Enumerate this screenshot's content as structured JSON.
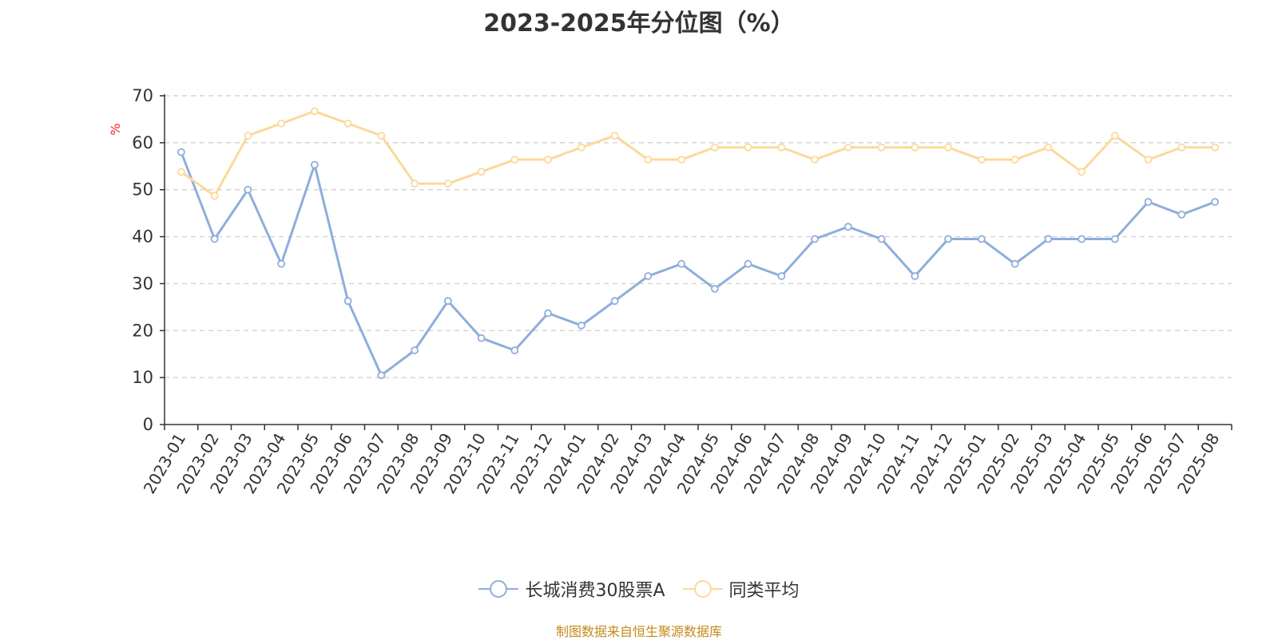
{
  "chart_data": {
    "type": "line",
    "title": "2023-2025年分位图（%）",
    "ylabel": "%",
    "ylim": [
      0,
      70
    ],
    "yticks": [
      0,
      10,
      20,
      30,
      40,
      50,
      60,
      70
    ],
    "grid": true,
    "legend_position": "bottom",
    "x": [
      "2023-01",
      "2023-02",
      "2023-03",
      "2023-04",
      "2023-05",
      "2023-06",
      "2023-07",
      "2023-08",
      "2023-09",
      "2023-10",
      "2023-11",
      "2023-12",
      "2024-01",
      "2024-02",
      "2024-03",
      "2024-04",
      "2024-05",
      "2024-06",
      "2024-07",
      "2024-08",
      "2024-09",
      "2024-10",
      "2024-11",
      "2024-12",
      "2025-01",
      "2025-02",
      "2025-03",
      "2025-04",
      "2025-05",
      "2025-06",
      "2025-07",
      "2025-08"
    ],
    "series": [
      {
        "name": "长城消费30股票A",
        "color": "#8eaedb",
        "values": [
          58.0,
          39.5,
          50.0,
          34.2,
          55.3,
          26.3,
          10.5,
          15.8,
          26.3,
          18.4,
          15.8,
          23.7,
          21.1,
          26.3,
          31.6,
          34.2,
          28.9,
          34.2,
          31.6,
          39.5,
          42.1,
          39.5,
          31.6,
          39.5,
          39.5,
          34.2,
          39.5,
          39.5,
          39.5,
          47.4,
          44.7,
          47.4
        ]
      },
      {
        "name": "同类平均",
        "color": "#fbd99a",
        "values": [
          53.8,
          48.7,
          61.5,
          64.1,
          66.7,
          64.1,
          61.5,
          51.3,
          51.3,
          53.8,
          56.4,
          56.4,
          59.0,
          61.5,
          56.4,
          56.4,
          59.0,
          59.0,
          59.0,
          56.4,
          59.0,
          59.0,
          59.0,
          59.0,
          56.4,
          56.4,
          59.0,
          53.8,
          61.5,
          56.4,
          59.0,
          59.0
        ]
      }
    ]
  },
  "footer": {
    "source": "制图数据来自恒生聚源数据库"
  }
}
